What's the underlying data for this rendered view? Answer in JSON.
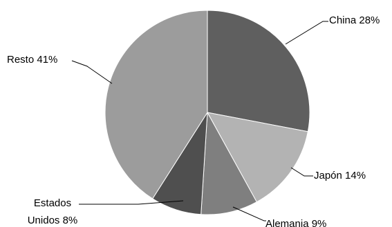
{
  "chart_data": {
    "type": "pie",
    "title": "",
    "start_angle_deg": 0,
    "direction": "clockwise",
    "slices": [
      {
        "label": "China",
        "value": 28,
        "value_label": "28%",
        "color": "#5f5f5f"
      },
      {
        "label": "Japón",
        "value": 14,
        "value_label": "14%",
        "color": "#b3b3b3"
      },
      {
        "label": "Alemania",
        "value": 9,
        "value_label": "9%",
        "color": "#7f7f7f"
      },
      {
        "label": "Estados Unidos",
        "value": 8,
        "value_label": "8%",
        "color": "#4f4f4f"
      },
      {
        "label": "Resto",
        "value": 41,
        "value_label": "41%",
        "color": "#9c9c9c"
      }
    ]
  }
}
